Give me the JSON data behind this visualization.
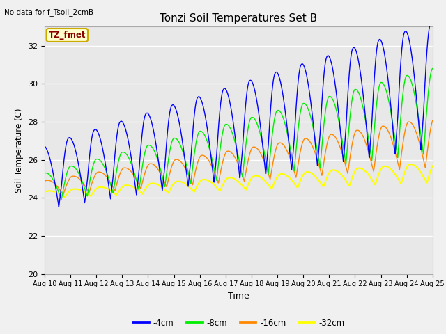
{
  "title": "Tonzi Soil Temperatures Set B",
  "no_data_label": "No data for f_Tsoil_2cmB",
  "tz_fmet_label": "TZ_fmet",
  "xlabel": "Time",
  "ylabel": "Soil Temperature (C)",
  "ylim": [
    20,
    33
  ],
  "yticks": [
    20,
    22,
    24,
    26,
    28,
    30,
    32
  ],
  "xtick_labels": [
    "Aug 10",
    "Aug 11",
    "Aug 12",
    "Aug 13",
    "Aug 14",
    "Aug 15",
    "Aug 16",
    "Aug 17",
    "Aug 18",
    "Aug 19",
    "Aug 20",
    "Aug 21",
    "Aug 22",
    "Aug 23",
    "Aug 24",
    "Aug 25"
  ],
  "colors": {
    "-4cm": "#0000ff",
    "-8cm": "#00ee00",
    "-16cm": "#ff8800",
    "-32cm": "#ffff00"
  },
  "fig_bg": "#f0f0f0",
  "plot_bg": "#e8e8e8",
  "grid_color": "#ffffff"
}
